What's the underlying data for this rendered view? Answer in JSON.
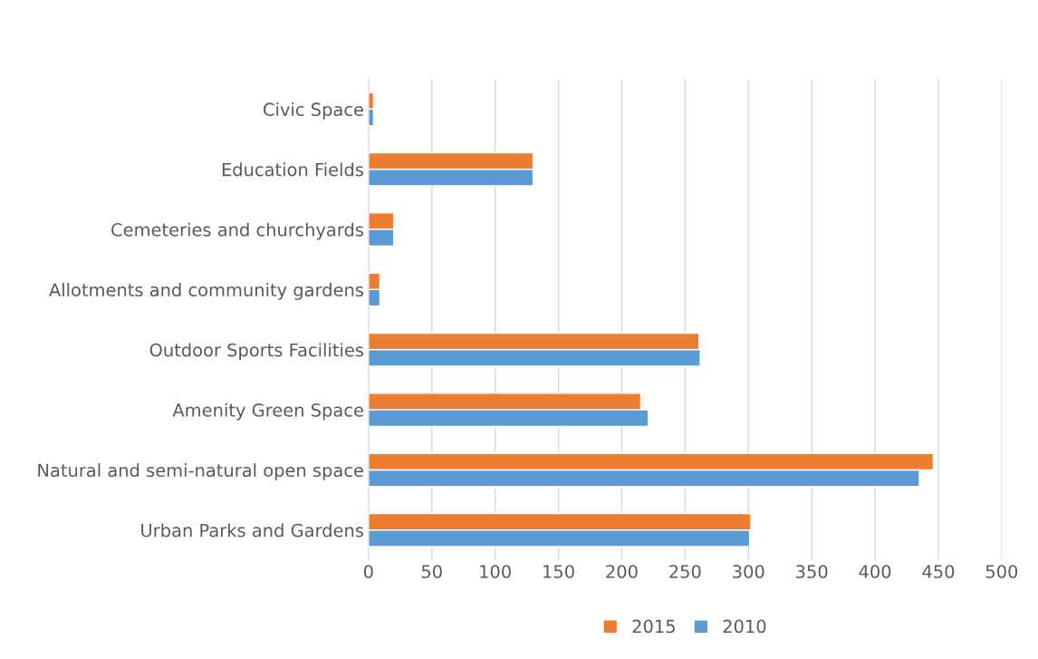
{
  "chart_data": {
    "type": "bar",
    "orientation": "horizontal",
    "categories": [
      "Civic Space",
      "Education Fields",
      "Cemeteries and churchyards",
      "Allotments and community gardens",
      "Outdoor Sports Facilities",
      "Amenity Green Space",
      "Natural and semi-natural open space",
      "Urban Parks and Gardens"
    ],
    "series": [
      {
        "name": "2015",
        "color": "#ed7d31",
        "values": [
          4,
          130,
          20,
          9,
          261,
          215,
          446,
          302
        ]
      },
      {
        "name": "2010",
        "color": "#5b9bd5",
        "values": [
          4,
          130,
          20,
          9,
          262,
          221,
          435,
          301
        ]
      }
    ],
    "xlim": [
      0,
      500
    ],
    "xticks": [
      0,
      50,
      100,
      150,
      200,
      250,
      300,
      350,
      400,
      450,
      500
    ],
    "grid": "x",
    "legend": "bottom"
  }
}
